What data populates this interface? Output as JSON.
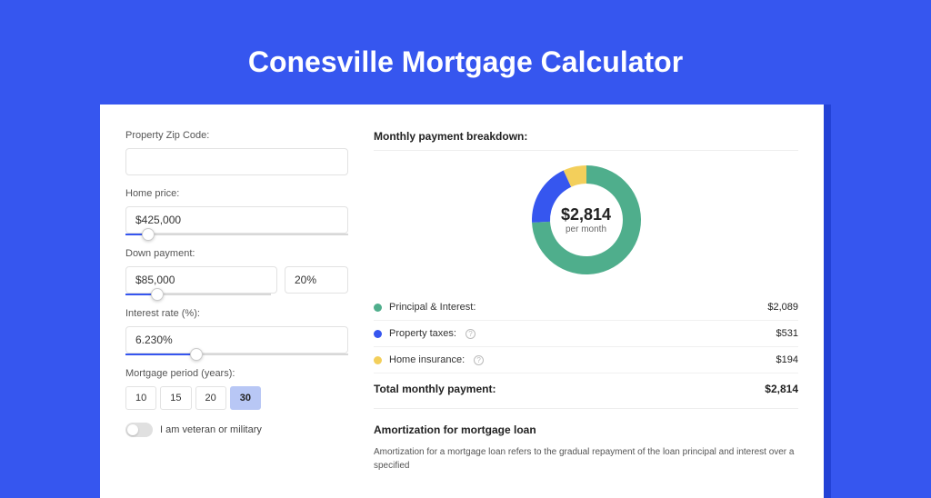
{
  "page": {
    "title": "Conesville Mortgage Calculator",
    "background_color": "#3656ef",
    "shadow_color": "#2342d6",
    "card_background": "#ffffff"
  },
  "form": {
    "zip_label": "Property Zip Code:",
    "zip_value": "",
    "home_price_label": "Home price:",
    "home_price_value": "$425,000",
    "home_price_slider_pct": 10,
    "down_payment_label": "Down payment:",
    "down_payment_amount": "$85,000",
    "down_payment_pct": "20%",
    "down_payment_slider_pct": 22,
    "interest_label": "Interest rate (%):",
    "interest_value": "6.230%",
    "interest_slider_pct": 32,
    "period_label": "Mortgage period (years):",
    "period_options": [
      "10",
      "15",
      "20",
      "30"
    ],
    "period_selected": "30",
    "veteran_label": "I am veteran or military"
  },
  "breakdown": {
    "title": "Monthly payment breakdown:",
    "center_amount": "$2,814",
    "center_sub": "per month",
    "donut": {
      "segments": [
        {
          "key": "principal_interest",
          "value": 2089,
          "color": "#4fae8c"
        },
        {
          "key": "property_taxes",
          "value": 531,
          "color": "#3656ef"
        },
        {
          "key": "home_insurance",
          "value": 194,
          "color": "#f3cf5b"
        }
      ],
      "ring_width": 20
    },
    "items": [
      {
        "label": "Principal & Interest:",
        "value": "$2,089",
        "color": "#4fae8c",
        "info": false
      },
      {
        "label": "Property taxes:",
        "value": "$531",
        "color": "#3656ef",
        "info": true
      },
      {
        "label": "Home insurance:",
        "value": "$194",
        "color": "#f3cf5b",
        "info": true
      }
    ],
    "total_label": "Total monthly payment:",
    "total_value": "$2,814"
  },
  "amortization": {
    "title": "Amortization for mortgage loan",
    "text": "Amortization for a mortgage loan refers to the gradual repayment of the loan principal and interest over a specified"
  }
}
